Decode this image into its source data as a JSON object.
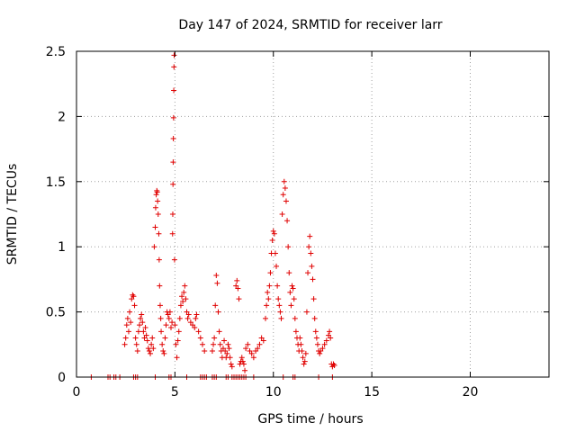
{
  "chart_data": {
    "type": "scatter",
    "title": "Day 147 of 2024, SRMTID for receiver larr",
    "xlabel": "GPS time / hours",
    "ylabel": "SRMTID / TECUs",
    "xlim": [
      0,
      24
    ],
    "ylim": [
      0,
      2.5
    ],
    "x_ticks": [
      0,
      5,
      10,
      15,
      20
    ],
    "x_tick_labels": [
      "0",
      "5",
      "10",
      "15",
      "20"
    ],
    "y_ticks": [
      0,
      0.5,
      1,
      1.5,
      2,
      2.5
    ],
    "y_tick_labels": [
      "0",
      "0.5",
      "1",
      "1.5",
      "2",
      "2.5"
    ],
    "grid": true,
    "marker": "plus",
    "color": "#e00000",
    "series": [
      {
        "name": "SRMTID",
        "points": [
          [
            0.75,
            0
          ],
          [
            1.6,
            0
          ],
          [
            1.7,
            0
          ],
          [
            1.9,
            0
          ],
          [
            2.0,
            0
          ],
          [
            2.2,
            0
          ],
          [
            2.9,
            0
          ],
          [
            3.0,
            0
          ],
          [
            3.1,
            0
          ],
          [
            4.0,
            0
          ],
          [
            4.7,
            0
          ],
          [
            4.8,
            0
          ],
          [
            5.6,
            0
          ],
          [
            6.3,
            0
          ],
          [
            6.4,
            0
          ],
          [
            6.5,
            0
          ],
          [
            6.6,
            0
          ],
          [
            6.9,
            0
          ],
          [
            7.0,
            0
          ],
          [
            7.1,
            0
          ],
          [
            7.6,
            0
          ],
          [
            7.7,
            0
          ],
          [
            7.9,
            0
          ],
          [
            8.0,
            0
          ],
          [
            8.1,
            0
          ],
          [
            8.2,
            0
          ],
          [
            8.3,
            0
          ],
          [
            8.4,
            0
          ],
          [
            8.5,
            0
          ],
          [
            8.6,
            0
          ],
          [
            9.0,
            0
          ],
          [
            10.5,
            0
          ],
          [
            11.0,
            0
          ],
          [
            11.1,
            0
          ],
          [
            12.3,
            0
          ],
          [
            13.0,
            0
          ],
          [
            2.45,
            0.25
          ],
          [
            2.5,
            0.3
          ],
          [
            2.55,
            0.4
          ],
          [
            2.6,
            0.45
          ],
          [
            2.65,
            0.35
          ],
          [
            2.7,
            0.5
          ],
          [
            2.75,
            0.42
          ],
          [
            2.8,
            0.6
          ],
          [
            2.85,
            0.63
          ],
          [
            2.9,
            0.62
          ],
          [
            2.95,
            0.55
          ],
          [
            3.0,
            0.3
          ],
          [
            3.05,
            0.25
          ],
          [
            3.1,
            0.2
          ],
          [
            3.15,
            0.35
          ],
          [
            3.2,
            0.4
          ],
          [
            3.25,
            0.45
          ],
          [
            3.3,
            0.48
          ],
          [
            3.35,
            0.42
          ],
          [
            3.4,
            0.35
          ],
          [
            3.45,
            0.3
          ],
          [
            3.5,
            0.38
          ],
          [
            3.55,
            0.32
          ],
          [
            3.6,
            0.28
          ],
          [
            3.65,
            0.22
          ],
          [
            3.7,
            0.2
          ],
          [
            3.75,
            0.18
          ],
          [
            3.8,
            0.25
          ],
          [
            3.85,
            0.3
          ],
          [
            3.9,
            0.22
          ],
          [
            3.95,
            1.0
          ],
          [
            4.0,
            1.15
          ],
          [
            4.02,
            1.3
          ],
          [
            4.05,
            1.4
          ],
          [
            4.08,
            1.43
          ],
          [
            4.1,
            1.42
          ],
          [
            4.12,
            1.35
          ],
          [
            4.15,
            1.25
          ],
          [
            4.18,
            1.1
          ],
          [
            4.2,
            0.9
          ],
          [
            4.22,
            0.7
          ],
          [
            4.25,
            0.55
          ],
          [
            4.28,
            0.45
          ],
          [
            4.3,
            0.35
          ],
          [
            4.35,
            0.25
          ],
          [
            4.4,
            0.2
          ],
          [
            4.45,
            0.18
          ],
          [
            4.5,
            0.3
          ],
          [
            4.55,
            0.4
          ],
          [
            4.6,
            0.5
          ],
          [
            4.65,
            0.48
          ],
          [
            4.7,
            0.45
          ],
          [
            4.75,
            0.5
          ],
          [
            4.8,
            0.38
          ],
          [
            4.85,
            0.42
          ],
          [
            4.88,
            1.1
          ],
          [
            4.89,
            1.25
          ],
          [
            4.9,
            1.48
          ],
          [
            4.91,
            1.65
          ],
          [
            4.92,
            1.83
          ],
          [
            4.93,
            1.99
          ],
          [
            4.94,
            2.2
          ],
          [
            4.95,
            2.38
          ],
          [
            4.96,
            2.47
          ],
          [
            4.98,
            0.9
          ],
          [
            5.0,
            0.4
          ],
          [
            5.05,
            0.25
          ],
          [
            5.1,
            0.15
          ],
          [
            5.15,
            0.28
          ],
          [
            5.2,
            0.35
          ],
          [
            5.25,
            0.45
          ],
          [
            5.3,
            0.55
          ],
          [
            5.35,
            0.62
          ],
          [
            5.4,
            0.58
          ],
          [
            5.45,
            0.65
          ],
          [
            5.5,
            0.7
          ],
          [
            5.55,
            0.6
          ],
          [
            5.6,
            0.5
          ],
          [
            5.65,
            0.45
          ],
          [
            5.7,
            0.48
          ],
          [
            5.8,
            0.42
          ],
          [
            5.9,
            0.4
          ],
          [
            6.0,
            0.38
          ],
          [
            6.05,
            0.45
          ],
          [
            6.1,
            0.48
          ],
          [
            6.2,
            0.35
          ],
          [
            6.3,
            0.3
          ],
          [
            6.4,
            0.25
          ],
          [
            6.5,
            0.2
          ],
          [
            6.9,
            0.2
          ],
          [
            6.95,
            0.25
          ],
          [
            7.0,
            0.3
          ],
          [
            7.05,
            0.55
          ],
          [
            7.1,
            0.78
          ],
          [
            7.15,
            0.72
          ],
          [
            7.2,
            0.5
          ],
          [
            7.25,
            0.35
          ],
          [
            7.3,
            0.25
          ],
          [
            7.35,
            0.2
          ],
          [
            7.4,
            0.15
          ],
          [
            7.45,
            0.22
          ],
          [
            7.5,
            0.28
          ],
          [
            7.55,
            0.2
          ],
          [
            7.6,
            0.15
          ],
          [
            7.65,
            0.18
          ],
          [
            7.7,
            0.25
          ],
          [
            7.75,
            0.22
          ],
          [
            7.8,
            0.15
          ],
          [
            7.85,
            0.1
          ],
          [
            7.9,
            0.08
          ],
          [
            8.1,
            0.7
          ],
          [
            8.15,
            0.74
          ],
          [
            8.2,
            0.68
          ],
          [
            8.25,
            0.6
          ],
          [
            8.3,
            0.1
          ],
          [
            8.35,
            0.12
          ],
          [
            8.4,
            0.15
          ],
          [
            8.45,
            0.12
          ],
          [
            8.5,
            0.1
          ],
          [
            8.55,
            0.05
          ],
          [
            8.6,
            0.22
          ],
          [
            8.7,
            0.25
          ],
          [
            8.8,
            0.2
          ],
          [
            8.9,
            0.18
          ],
          [
            9.0,
            0.15
          ],
          [
            9.1,
            0.2
          ],
          [
            9.2,
            0.22
          ],
          [
            9.3,
            0.25
          ],
          [
            9.4,
            0.3
          ],
          [
            9.5,
            0.28
          ],
          [
            9.6,
            0.45
          ],
          [
            9.65,
            0.55
          ],
          [
            9.7,
            0.65
          ],
          [
            9.75,
            0.6
          ],
          [
            9.8,
            0.7
          ],
          [
            9.85,
            0.8
          ],
          [
            9.9,
            0.95
          ],
          [
            9.95,
            1.05
          ],
          [
            10.0,
            1.12
          ],
          [
            10.05,
            1.1
          ],
          [
            10.1,
            0.95
          ],
          [
            10.15,
            0.85
          ],
          [
            10.2,
            0.7
          ],
          [
            10.25,
            0.6
          ],
          [
            10.3,
            0.55
          ],
          [
            10.35,
            0.5
          ],
          [
            10.4,
            0.45
          ],
          [
            10.45,
            1.25
          ],
          [
            10.5,
            1.4
          ],
          [
            10.55,
            1.5
          ],
          [
            10.6,
            1.45
          ],
          [
            10.65,
            1.35
          ],
          [
            10.7,
            1.2
          ],
          [
            10.75,
            1.0
          ],
          [
            10.8,
            0.8
          ],
          [
            10.85,
            0.65
          ],
          [
            10.9,
            0.55
          ],
          [
            10.95,
            0.7
          ],
          [
            11.0,
            0.68
          ],
          [
            11.05,
            0.6
          ],
          [
            11.1,
            0.45
          ],
          [
            11.15,
            0.35
          ],
          [
            11.2,
            0.3
          ],
          [
            11.25,
            0.25
          ],
          [
            11.3,
            0.2
          ],
          [
            11.35,
            0.3
          ],
          [
            11.4,
            0.25
          ],
          [
            11.45,
            0.2
          ],
          [
            11.5,
            0.15
          ],
          [
            11.55,
            0.1
          ],
          [
            11.6,
            0.12
          ],
          [
            11.65,
            0.18
          ],
          [
            11.7,
            0.5
          ],
          [
            11.75,
            0.8
          ],
          [
            11.8,
            1.0
          ],
          [
            11.85,
            1.08
          ],
          [
            11.9,
            0.95
          ],
          [
            11.95,
            0.85
          ],
          [
            12.0,
            0.75
          ],
          [
            12.05,
            0.6
          ],
          [
            12.1,
            0.45
          ],
          [
            12.15,
            0.35
          ],
          [
            12.2,
            0.3
          ],
          [
            12.25,
            0.25
          ],
          [
            12.3,
            0.2
          ],
          [
            12.35,
            0.18
          ],
          [
            12.4,
            0.2
          ],
          [
            12.5,
            0.22
          ],
          [
            12.6,
            0.25
          ],
          [
            12.7,
            0.28
          ],
          [
            12.8,
            0.32
          ],
          [
            12.85,
            0.35
          ],
          [
            12.9,
            0.3
          ],
          [
            12.95,
            0.1
          ],
          [
            13.0,
            0.08
          ],
          [
            13.05,
            0.1
          ],
          [
            13.1,
            0.09
          ]
        ]
      }
    ]
  }
}
